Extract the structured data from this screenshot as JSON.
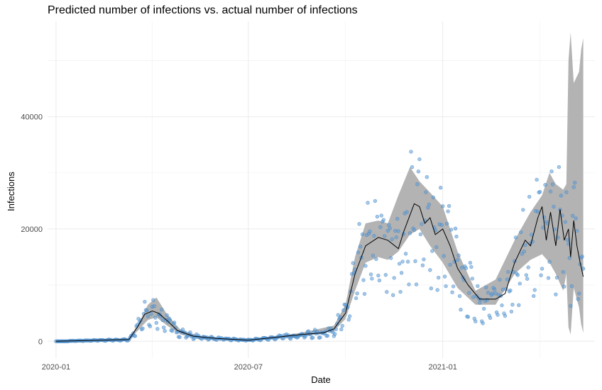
{
  "chart_data": {
    "type": "line",
    "title": "Predicted number of infections vs. actual number of infections",
    "xlabel": "Date",
    "ylabel": "Infections",
    "x_range": [
      "2019-12-24",
      "2021-05-25"
    ],
    "ylim": [
      -3000,
      57000
    ],
    "x_ticks": [
      {
        "date": "2020-01-01",
        "label": "2020-01"
      },
      {
        "date": "2020-07-01",
        "label": "2020-07"
      },
      {
        "date": "2021-01-01",
        "label": "2021-01"
      }
    ],
    "y_ticks": [
      {
        "value": 0,
        "label": "0"
      },
      {
        "value": 20000,
        "label": "20000"
      },
      {
        "value": 40000,
        "label": "40000"
      }
    ],
    "grid": true,
    "colors": {
      "points": "#5b9bd5",
      "line": "#000000",
      "band": "#b3b3b3",
      "grid": "#ebebeb"
    },
    "series": [
      {
        "kind": "confidence-band",
        "x": [
          "2020-01-01",
          "2020-03-10",
          "2020-03-20",
          "2020-03-28",
          "2020-04-05",
          "2020-04-15",
          "2020-04-28",
          "2020-05-20",
          "2020-07-01",
          "2020-08-20",
          "2020-09-20",
          "2020-10-01",
          "2020-10-10",
          "2020-10-20",
          "2020-11-01",
          "2020-11-10",
          "2020-11-20",
          "2020-12-01",
          "2020-12-10",
          "2020-12-20",
          "2021-01-01",
          "2021-01-15",
          "2021-02-01",
          "2021-02-20",
          "2021-03-10",
          "2021-03-25",
          "2021-04-05",
          "2021-04-12",
          "2021-04-18",
          "2021-04-25",
          "2021-04-28",
          "2021-04-30",
          "2021-05-02",
          "2021-05-05",
          "2021-05-10",
          "2021-05-12",
          "2021-05-14"
        ],
        "lower": [
          0,
          200,
          2200,
          3800,
          4300,
          2800,
          1200,
          300,
          100,
          800,
          1800,
          4000,
          9000,
          14000,
          15000,
          14500,
          16000,
          19000,
          20000,
          17000,
          14000,
          9500,
          6500,
          6500,
          12000,
          14500,
          15500,
          14000,
          12000,
          9000,
          12000,
          2500,
          1200,
          9500,
          6000,
          3000,
          1500
        ],
        "upper": [
          0,
          500,
          3500,
          6500,
          7800,
          4800,
          2000,
          700,
          300,
          1500,
          2800,
          6500,
          15000,
          21000,
          21500,
          21000,
          26000,
          31000,
          28500,
          26500,
          24000,
          16000,
          9000,
          11000,
          18000,
          23000,
          26000,
          30000,
          28000,
          27000,
          28000,
          50000,
          55000,
          46000,
          48000,
          52000,
          54000
        ]
      },
      {
        "kind": "predicted-line",
        "x": [
          "2020-01-01",
          "2020-03-10",
          "2020-03-18",
          "2020-03-25",
          "2020-04-01",
          "2020-04-07",
          "2020-04-15",
          "2020-04-25",
          "2020-05-10",
          "2020-06-01",
          "2020-07-01",
          "2020-08-01",
          "2020-08-20",
          "2020-09-10",
          "2020-09-20",
          "2020-10-01",
          "2020-10-10",
          "2020-10-20",
          "2020-11-01",
          "2020-11-10",
          "2020-11-20",
          "2020-11-25",
          "2020-12-05",
          "2020-12-10",
          "2020-12-15",
          "2020-12-20",
          "2020-12-25",
          "2021-01-01",
          "2021-01-08",
          "2021-01-15",
          "2021-01-25",
          "2021-02-05",
          "2021-02-20",
          "2021-03-01",
          "2021-03-10",
          "2021-03-20",
          "2021-03-25",
          "2021-04-01",
          "2021-04-05",
          "2021-04-09",
          "2021-04-13",
          "2021-04-18",
          "2021-04-22",
          "2021-04-26",
          "2021-04-30",
          "2021-05-02",
          "2021-05-05",
          "2021-05-08",
          "2021-05-11",
          "2021-05-14"
        ],
        "values": [
          0,
          300,
          2500,
          4800,
          5400,
          5000,
          3700,
          1900,
          900,
          500,
          200,
          800,
          1200,
          1500,
          2200,
          5000,
          12000,
          17000,
          18500,
          18000,
          16500,
          19500,
          24500,
          24000,
          21000,
          22000,
          19000,
          20000,
          17000,
          13000,
          10000,
          7500,
          7500,
          8500,
          14000,
          18000,
          17000,
          22000,
          24000,
          18000,
          23000,
          17000,
          23500,
          18000,
          20000,
          15000,
          21500,
          17000,
          14000,
          11500
        ]
      }
    ],
    "observed_points": {
      "start": "2020-01-01",
      "end": "2021-05-14",
      "ymax": 34000
    }
  }
}
